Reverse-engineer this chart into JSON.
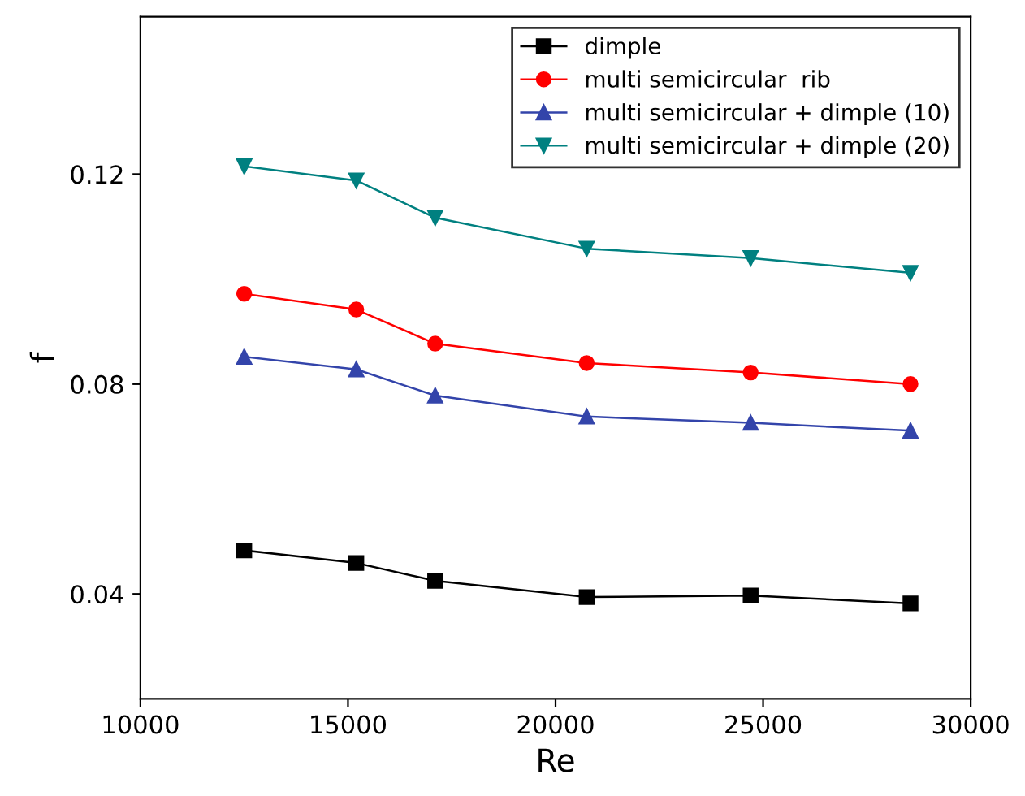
{
  "chart_data": {
    "type": "line",
    "xlabel": "Re",
    "ylabel": "f",
    "xlim": [
      10000,
      30000
    ],
    "xticks": [
      10000,
      15000,
      20000,
      25000,
      30000
    ],
    "ylim": [
      0.02,
      0.15
    ],
    "yticks": [
      {
        "value": 0.04,
        "label": "0.04"
      },
      {
        "value": 0.08,
        "label": "0.08"
      },
      {
        "value": 0.12,
        "label": "0.12"
      }
    ],
    "grid": false,
    "legend": "top right",
    "line_style": "solid",
    "x": [
      12500,
      15200,
      17100,
      20750,
      24700,
      28550
    ],
    "series": [
      {
        "name": "dimple",
        "color": "#000000",
        "marker": "square",
        "values": [
          0.0483,
          0.0459,
          0.0425,
          0.0394,
          0.0397,
          0.0382
        ]
      },
      {
        "name": "multi semicircular  rib",
        "color": "#ff0000",
        "marker": "circle",
        "values": [
          0.0972,
          0.0942,
          0.0877,
          0.084,
          0.0822,
          0.08
        ]
      },
      {
        "name": "multi semicircular + dimple (10)",
        "color": "#3344aa",
        "marker": "triangle",
        "values": [
          0.0852,
          0.0828,
          0.0778,
          0.0738,
          0.0726,
          0.0711
        ]
      },
      {
        "name": "multi semicircular + dimple (20)",
        "color": "#008080",
        "marker": "triangle_down",
        "values": [
          0.1215,
          0.1188,
          0.1117,
          0.1058,
          0.104,
          0.1012
        ]
      }
    ]
  }
}
